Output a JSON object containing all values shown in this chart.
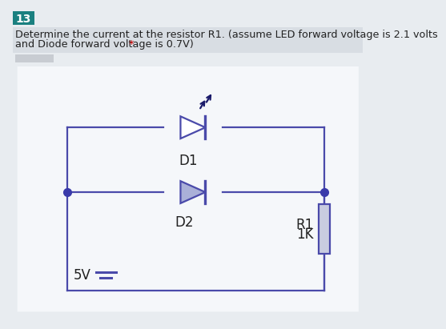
{
  "question_num": "13",
  "question_num_bg": "#1a8080",
  "question_num_color": "#ffffff",
  "question_text_1": "Determine the current at the resistor R1. (assume LED forward voltage is 2.1 volts",
  "question_text_2": "and Diode forward voltage is 0.7V)",
  "asterisk": " *",
  "asterisk_color": "#cc0000",
  "bg_color": "#e8ecf0",
  "text_bg_color": "#d8dde3",
  "circuit_bg": "#f5f7fa",
  "circuit_color": "#3a3aaa",
  "wire_color": "#4a4aaa",
  "text_color": "#222222",
  "voltage_label": "5V",
  "r1_label_1": "R1",
  "r1_label_2": "1K",
  "d1_label": "D1",
  "d2_label": "D2",
  "led_fill": "#ffffff",
  "diode_fill": "#aab0d8",
  "resistor_fill": "#c8cce0",
  "dot_color": "#3a3aaa",
  "arrow_color": "#1a1a6a"
}
